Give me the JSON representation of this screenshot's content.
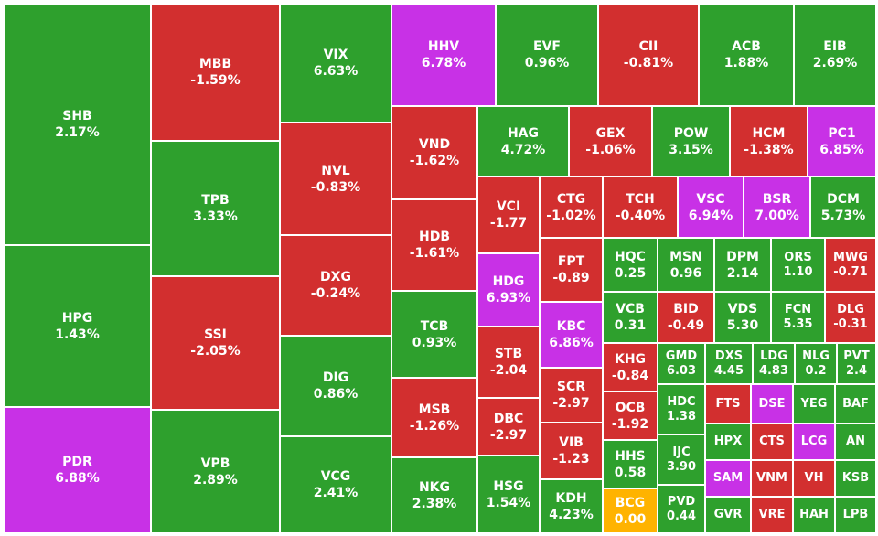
{
  "colors": {
    "up": "#2ea02d",
    "down": "#d22f2f",
    "ceiling": "#c831e6",
    "ref": "#ffb300"
  },
  "chart_data": {
    "type": "heatmap",
    "title": "",
    "tiles": [
      {
        "symbol": "SHB",
        "change": "2.17%",
        "status": "up"
      },
      {
        "symbol": "HPG",
        "change": "1.43%",
        "status": "up"
      },
      {
        "symbol": "PDR",
        "change": "6.88%",
        "status": "ceiling"
      },
      {
        "symbol": "MBB",
        "change": "-1.59%",
        "status": "down"
      },
      {
        "symbol": "TPB",
        "change": "3.33%",
        "status": "up"
      },
      {
        "symbol": "SSI",
        "change": "-2.05%",
        "status": "down"
      },
      {
        "symbol": "VPB",
        "change": "2.89%",
        "status": "up"
      },
      {
        "symbol": "VIX",
        "change": "6.63%",
        "status": "up"
      },
      {
        "symbol": "NVL",
        "change": "-0.83%",
        "status": "down"
      },
      {
        "symbol": "DXG",
        "change": "-0.24%",
        "status": "down"
      },
      {
        "symbol": "DIG",
        "change": "0.86%",
        "status": "up"
      },
      {
        "symbol": "VCG",
        "change": "2.41%",
        "status": "up"
      },
      {
        "symbol": "HHV",
        "change": "6.78%",
        "status": "ceiling"
      },
      {
        "symbol": "EVF",
        "change": "0.96%",
        "status": "up"
      },
      {
        "symbol": "CII",
        "change": "-0.81%",
        "status": "down"
      },
      {
        "symbol": "ACB",
        "change": "1.88%",
        "status": "up"
      },
      {
        "symbol": "EIB",
        "change": "2.69%",
        "status": "up"
      },
      {
        "symbol": "VND",
        "change": "-1.62%",
        "status": "down"
      },
      {
        "symbol": "HDB",
        "change": "-1.61%",
        "status": "down"
      },
      {
        "symbol": "TCB",
        "change": "0.93%",
        "status": "up"
      },
      {
        "symbol": "MSB",
        "change": "-1.26%",
        "status": "down"
      },
      {
        "symbol": "NKG",
        "change": "2.38%",
        "status": "up"
      },
      {
        "symbol": "HAG",
        "change": "4.72%",
        "status": "up"
      },
      {
        "symbol": "GEX",
        "change": "-1.06%",
        "status": "down"
      },
      {
        "symbol": "POW",
        "change": "3.15%",
        "status": "up"
      },
      {
        "symbol": "HCM",
        "change": "-1.38%",
        "status": "down"
      },
      {
        "symbol": "PC1",
        "change": "6.85%",
        "status": "ceiling"
      },
      {
        "symbol": "VCI",
        "change": "-1.77",
        "status": "down"
      },
      {
        "symbol": "HDG",
        "change": "6.93%",
        "status": "ceiling"
      },
      {
        "symbol": "STB",
        "change": "-2.04",
        "status": "down"
      },
      {
        "symbol": "DBC",
        "change": "-2.97",
        "status": "down"
      },
      {
        "symbol": "HSG",
        "change": "1.54%",
        "status": "up"
      },
      {
        "symbol": "CTG",
        "change": "-1.02%",
        "status": "down"
      },
      {
        "symbol": "TCH",
        "change": "-0.40%",
        "status": "down"
      },
      {
        "symbol": "VSC",
        "change": "6.94%",
        "status": "ceiling"
      },
      {
        "symbol": "BSR",
        "change": "7.00%",
        "status": "ceiling"
      },
      {
        "symbol": "DCM",
        "change": "5.73%",
        "status": "up"
      },
      {
        "symbol": "FPT",
        "change": "-0.89",
        "status": "down"
      },
      {
        "symbol": "KBC",
        "change": "6.86%",
        "status": "ceiling"
      },
      {
        "symbol": "SCR",
        "change": "-2.97",
        "status": "down"
      },
      {
        "symbol": "VIB",
        "change": "-1.23",
        "status": "down"
      },
      {
        "symbol": "KDH",
        "change": "4.23%",
        "status": "up"
      },
      {
        "symbol": "HQC",
        "change": "0.25",
        "status": "up"
      },
      {
        "symbol": "MSN",
        "change": "0.96",
        "status": "up"
      },
      {
        "symbol": "DPM",
        "change": "2.14",
        "status": "up"
      },
      {
        "symbol": "ORS",
        "change": "1.10",
        "status": "up"
      },
      {
        "symbol": "MWG",
        "change": "-0.71",
        "status": "down"
      },
      {
        "symbol": "VCB",
        "change": "0.31",
        "status": "up"
      },
      {
        "symbol": "BID",
        "change": "-0.49",
        "status": "down"
      },
      {
        "symbol": "VDS",
        "change": "5.30",
        "status": "up"
      },
      {
        "symbol": "FCN",
        "change": "5.35",
        "status": "up"
      },
      {
        "symbol": "DLG",
        "change": "-0.31",
        "status": "down"
      },
      {
        "symbol": "KHG",
        "change": "-0.84",
        "status": "down"
      },
      {
        "symbol": "OCB",
        "change": "-1.92",
        "status": "down"
      },
      {
        "symbol": "HHS",
        "change": "0.58",
        "status": "up"
      },
      {
        "symbol": "BCG",
        "change": "0.00",
        "status": "ref"
      },
      {
        "symbol": "GMD",
        "change": "6.03",
        "status": "up"
      },
      {
        "symbol": "HDC",
        "change": "1.38",
        "status": "up"
      },
      {
        "symbol": "IJC",
        "change": "3.90",
        "status": "up"
      },
      {
        "symbol": "PVD",
        "change": "0.44",
        "status": "up"
      },
      {
        "symbol": "DXS",
        "change": "4.45",
        "status": "up"
      },
      {
        "symbol": "LDG",
        "change": "4.83",
        "status": "up"
      },
      {
        "symbol": "NLG",
        "change": "0.2",
        "status": "up"
      },
      {
        "symbol": "PVT",
        "change": "2.4",
        "status": "up"
      },
      {
        "symbol": "FTS",
        "change": "",
        "status": "down"
      },
      {
        "symbol": "DSE",
        "change": "",
        "status": "ceiling"
      },
      {
        "symbol": "YEG",
        "change": "",
        "status": "up"
      },
      {
        "symbol": "BAF",
        "change": "",
        "status": "up"
      },
      {
        "symbol": "HPX",
        "change": "",
        "status": "up"
      },
      {
        "symbol": "CTS",
        "change": "",
        "status": "down"
      },
      {
        "symbol": "LCG",
        "change": "",
        "status": "ceiling"
      },
      {
        "symbol": "AN",
        "change": "",
        "status": "up"
      },
      {
        "symbol": "SAM",
        "change": "",
        "status": "ceiling"
      },
      {
        "symbol": "VNM",
        "change": "",
        "status": "down"
      },
      {
        "symbol": "VH",
        "change": "",
        "status": "down"
      },
      {
        "symbol": "KSB",
        "change": "",
        "status": "up"
      },
      {
        "symbol": "GVR",
        "change": "",
        "status": "up"
      },
      {
        "symbol": "VRE",
        "change": "",
        "status": "down"
      },
      {
        "symbol": "HAH",
        "change": "",
        "status": "up"
      },
      {
        "symbol": "LPB",
        "change": "",
        "status": "up"
      }
    ]
  }
}
